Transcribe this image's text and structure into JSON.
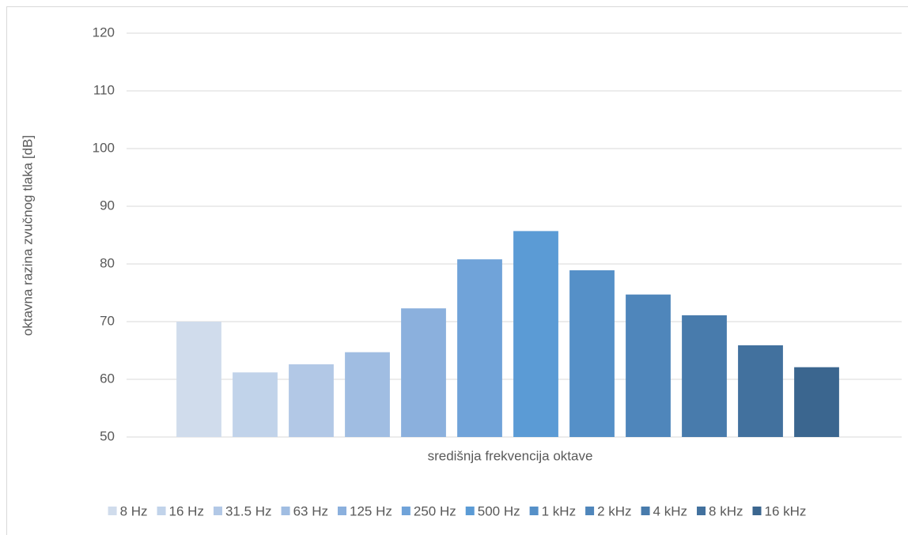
{
  "chart_data": {
    "type": "bar",
    "x_label": "središnja frekvencija oktave",
    "y_label": "oktavna razina zvučnog tlaka [dB]",
    "categories": [
      null
    ],
    "series": [
      {
        "name": "8 Hz",
        "color": "#d0dcec",
        "values": [
          70
        ]
      },
      {
        "name": "16 Hz",
        "color": "#c1d3ea",
        "values": [
          61.2
        ]
      },
      {
        "name": "31.5 Hz",
        "color": "#b2c8e6",
        "values": [
          62.6
        ]
      },
      {
        "name": "63 Hz",
        "color": "#a0bde2",
        "values": [
          64.7
        ]
      },
      {
        "name": "125 Hz",
        "color": "#8bb0dd",
        "values": [
          72.3
        ]
      },
      {
        "name": "250 Hz",
        "color": "#70a3d9",
        "values": [
          80.8
        ]
      },
      {
        "name": "500 Hz",
        "color": "#5b9bd5",
        "values": [
          85.7
        ]
      },
      {
        "name": "1 kHz",
        "color": "#5590c8",
        "values": [
          78.9
        ]
      },
      {
        "name": "2 kHz",
        "color": "#4f86bb",
        "values": [
          74.7
        ]
      },
      {
        "name": "4 kHz",
        "color": "#487bac",
        "values": [
          71.1
        ]
      },
      {
        "name": "8 kHz",
        "color": "#42719e",
        "values": [
          65.9
        ]
      },
      {
        "name": "16 kHz",
        "color": "#3b668f",
        "values": [
          62.1
        ]
      }
    ],
    "ylim": [
      50,
      120
    ],
    "yticks": [
      50,
      60,
      70,
      80,
      90,
      100,
      110,
      120
    ],
    "grid": true,
    "legend": "bottom"
  }
}
